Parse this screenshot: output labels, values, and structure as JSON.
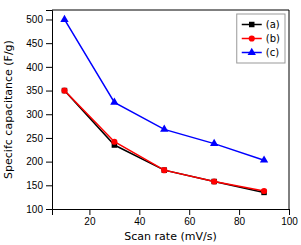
{
  "chart_data": {
    "type": "line",
    "xlabel": "Scan rate (mV/s)",
    "ylabel": "Specifc capacitance (F/g)",
    "x": [
      10,
      30,
      50,
      70,
      90
    ],
    "series": [
      {
        "name": "(a)",
        "color": "black",
        "marker": "square",
        "values": [
          350,
          235,
          182,
          158,
          135
        ]
      },
      {
        "name": "(b)",
        "color": "red",
        "marker": "circle",
        "values": [
          350,
          242,
          182,
          158,
          138
        ]
      },
      {
        "name": "(c)",
        "color": "blue",
        "marker": "triangle",
        "values": [
          500,
          325,
          268,
          238,
          203
        ]
      }
    ],
    "xlim": [
      5,
      100
    ],
    "ylim": [
      100,
      520
    ],
    "xticks": [
      20,
      40,
      60,
      80,
      100
    ],
    "yticks": [
      100,
      150,
      200,
      250,
      300,
      350,
      400,
      450,
      500
    ],
    "legend": "upper right",
    "grid": false
  }
}
